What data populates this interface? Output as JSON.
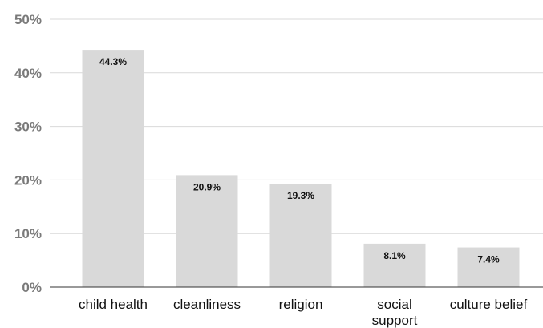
{
  "chart_data": {
    "type": "bar",
    "categories": [
      [
        "child health"
      ],
      [
        "cleanliness"
      ],
      [
        "religion"
      ],
      [
        "social",
        "support"
      ],
      [
        "culture belief"
      ]
    ],
    "values": [
      44.3,
      20.9,
      19.3,
      8.1,
      7.4
    ],
    "data_labels": [
      "44.3%",
      "20.9%",
      "19.3%",
      "8.1%",
      "7.4%"
    ],
    "y_ticks": [
      0,
      10,
      20,
      30,
      40,
      50
    ],
    "y_tick_labels": [
      "0%",
      "10%",
      "20%",
      "30%",
      "40%",
      "50%"
    ],
    "ylim": [
      0,
      50
    ],
    "grid": true,
    "legend": "none",
    "bar_color": "#d9d9d9",
    "grid_color": "#d9d9d9",
    "axis_color": "#333333",
    "tick_color": "#7a7a7a"
  }
}
